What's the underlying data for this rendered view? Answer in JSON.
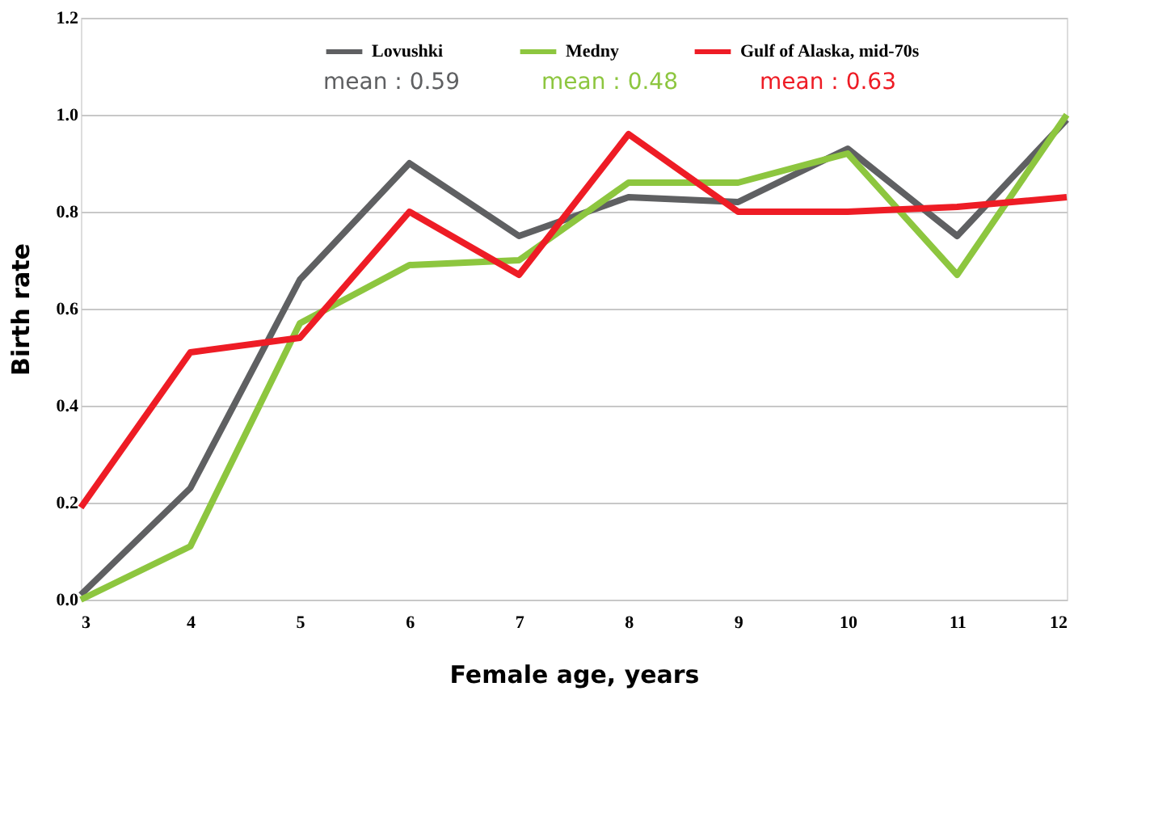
{
  "chart_data": {
    "type": "line",
    "xlabel": "Female age, years",
    "ylabel": "Birth rate",
    "x": [
      3,
      4,
      5,
      6,
      7,
      8,
      9,
      10,
      11,
      12
    ],
    "series": [
      {
        "name": "Lovushki",
        "color": "#5f6062",
        "values": [
          0.01,
          0.23,
          0.66,
          0.9,
          0.75,
          0.83,
          0.82,
          0.93,
          0.75,
          0.99
        ]
      },
      {
        "name": "Medny",
        "color": "#8dc63f",
        "values": [
          0.0,
          0.11,
          0.57,
          0.69,
          0.7,
          0.86,
          0.86,
          0.92,
          0.67,
          1.0
        ]
      },
      {
        "name": "Gulf of Alaska, mid-70s",
        "color": "#ee1c25",
        "values": [
          0.19,
          0.51,
          0.54,
          0.8,
          0.67,
          0.96,
          0.8,
          0.8,
          0.81,
          0.83
        ]
      }
    ],
    "annotations": [
      "mean : 0.59",
      "mean : 0.48",
      "mean : 0.63"
    ],
    "xlim": [
      3,
      12
    ],
    "xticks": [
      3,
      4,
      5,
      6,
      7,
      8,
      9,
      10,
      11,
      12
    ],
    "ylim": [
      0,
      1.2
    ],
    "yticks": [
      {
        "value": 0,
        "label": "0.0"
      },
      0.2,
      0.4,
      0.6,
      0.8,
      {
        "value": 1,
        "label": "1.0"
      },
      1.2
    ],
    "grid": "y",
    "legend": "top",
    "marker": "none",
    "line_style": "solid"
  }
}
